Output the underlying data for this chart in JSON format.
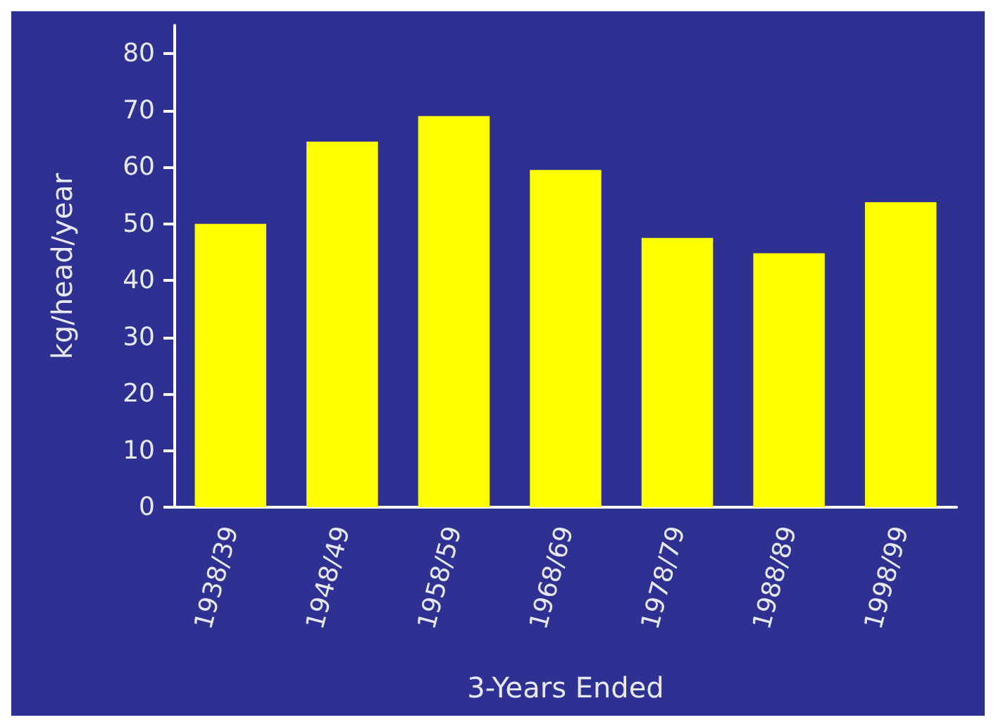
{
  "chart_data": {
    "type": "bar",
    "xlabel": "3-Years Ended",
    "ylabel": "kg/head/year",
    "categories": [
      "1938/39",
      "1948/49",
      "1958/59",
      "1968/69",
      "1978/79",
      "1988/89",
      "1998/99"
    ],
    "values": [
      50,
      64.5,
      69,
      59.5,
      47.5,
      44.8,
      53.8
    ],
    "color": "#ffff00",
    "ylim": [
      0,
      85
    ],
    "yticks": [
      0,
      10,
      20,
      30,
      40,
      50,
      60,
      70,
      80
    ],
    "grid": false
  }
}
